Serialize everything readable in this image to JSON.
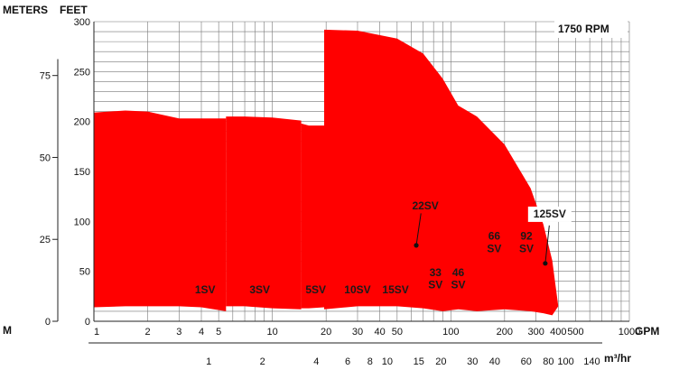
{
  "chart_data": {
    "type": "area",
    "title": "",
    "speed_label": "1750 RPM",
    "axis_units": {
      "left_outer": "METERS",
      "left_outer_stub": "M",
      "left_inner": "FEET",
      "bottom_primary": "GPM",
      "bottom_secondary": "m³/hr"
    },
    "x_scale": "log",
    "xlim": [
      1,
      1000
    ],
    "ylim": [
      0,
      300
    ],
    "grid": true,
    "feet_ticks": [
      {
        "value": 0,
        "label": "0"
      },
      {
        "value": 50,
        "label": "50"
      },
      {
        "value": 100,
        "label": "100"
      },
      {
        "value": 150,
        "label": "150"
      },
      {
        "value": 200,
        "label": "200"
      },
      {
        "value": 250,
        "label": "250"
      },
      {
        "value": 300,
        "label": "300"
      }
    ],
    "meter_ticks": [
      {
        "value": 0,
        "label": "0"
      },
      {
        "value": 25,
        "label": "25"
      },
      {
        "value": 50,
        "label": "50"
      },
      {
        "value": 75,
        "label": "75"
      }
    ],
    "gpm_ticks": [
      {
        "value": 1,
        "label": "1"
      },
      {
        "value": 2,
        "label": "2"
      },
      {
        "value": 3,
        "label": "3"
      },
      {
        "value": 4,
        "label": "4"
      },
      {
        "value": 5,
        "label": "5"
      },
      {
        "value": 10,
        "label": "10"
      },
      {
        "value": 20,
        "label": "20"
      },
      {
        "value": 30,
        "label": "30"
      },
      {
        "value": 40,
        "label": "40"
      },
      {
        "value": 50,
        "label": "50"
      },
      {
        "value": 100,
        "label": "100"
      },
      {
        "value": 200,
        "label": "200"
      },
      {
        "value": 300,
        "label": "300"
      },
      {
        "value": 400,
        "label": "400"
      },
      {
        "value": 500,
        "label": "500"
      },
      {
        "value": 1000,
        "label": "1000"
      }
    ],
    "m3hr_ticks": [
      {
        "value": 1,
        "label": "1"
      },
      {
        "value": 2,
        "label": "2"
      },
      {
        "value": 4,
        "label": "4"
      },
      {
        "value": 6,
        "label": "6"
      },
      {
        "value": 8,
        "label": "8"
      },
      {
        "value": 10,
        "label": "10"
      },
      {
        "value": 15,
        "label": "15"
      },
      {
        "value": 20,
        "label": "20"
      },
      {
        "value": 30,
        "label": "30"
      },
      {
        "value": 40,
        "label": "40"
      },
      {
        "value": 60,
        "label": "60"
      },
      {
        "value": 80,
        "label": "80"
      },
      {
        "value": 100,
        "label": "100"
      },
      {
        "value": 140,
        "label": "140"
      }
    ],
    "fill_color": "#ff0000",
    "series": [
      {
        "name": "1SV",
        "gpm": [
          1,
          1.5,
          2,
          3,
          4,
          5.5,
          5.5
        ],
        "upper_ft": [
          209,
          211,
          210,
          203,
          203,
          203,
          5
        ],
        "lower_ft": [
          14,
          15,
          15,
          15,
          14,
          10,
          5
        ]
      },
      {
        "name": "3SV",
        "gpm": [
          5.5,
          7,
          10,
          14.5,
          14.5
        ],
        "upper_ft": [
          205,
          205,
          204,
          201,
          11
        ],
        "lower_ft": [
          15,
          15,
          13,
          12,
          11
        ]
      },
      {
        "name": "5SV",
        "gpm": [
          10,
          14.5,
          17.5,
          19.5
        ],
        "upper_ft": [
          13,
          13,
          13,
          10
        ],
        "lower_ft": [
          13,
          13,
          13,
          10
        ]
      },
      {
        "name": "5SV / 10SV / 15SV",
        "gpm": [
          14.5,
          16,
          19.5,
          19.5,
          30,
          40,
          60,
          70,
          70
        ],
        "upper_ft": [
          198,
          196,
          196,
          15,
          15,
          14,
          13,
          12,
          7
        ],
        "lower_ft": [
          13,
          13,
          14,
          15,
          15,
          14,
          13,
          12,
          7
        ]
      },
      {
        "name": "22SV",
        "gpm": [
          19.5,
          30,
          50,
          70,
          90,
          110,
          140,
          200,
          280,
          330,
          370,
          400
        ],
        "upper_ft": [
          292,
          291,
          283,
          268,
          243,
          216,
          205,
          177,
          133,
          97,
          61,
          15
        ],
        "lower_ft": [
          12,
          15,
          15,
          13,
          10,
          12,
          10,
          12,
          10,
          8,
          6,
          15
        ]
      }
    ],
    "labels": [
      {
        "text": "1SV",
        "gpm": 4.2,
        "ft": 28
      },
      {
        "text": "3SV",
        "gpm": 8.5,
        "ft": 28
      },
      {
        "text": "5SV",
        "gpm": 17.5,
        "ft": 28
      },
      {
        "text": "10SV",
        "gpm": 30,
        "ft": 28
      },
      {
        "text": "15SV",
        "gpm": 49,
        "ft": 28
      },
      {
        "text": "22SV",
        "gpm": 72,
        "ft": 112
      },
      {
        "text": "33",
        "gpm": 82,
        "ft": 45
      },
      {
        "text": "SV",
        "gpm": 82,
        "ft": 33
      },
      {
        "text": "46",
        "gpm": 110,
        "ft": 45
      },
      {
        "text": "SV",
        "gpm": 110,
        "ft": 33
      },
      {
        "text": "66",
        "gpm": 175,
        "ft": 82
      },
      {
        "text": "SV",
        "gpm": 175,
        "ft": 69
      },
      {
        "text": "92",
        "gpm": 265,
        "ft": 82
      },
      {
        "text": "SV",
        "gpm": 265,
        "ft": 69
      },
      {
        "text": "125SV",
        "gpm": 358,
        "ft": 104
      }
    ],
    "leaders": [
      {
        "name": "22SV",
        "from_gpm": 68,
        "from_ft": 108,
        "to_gpm": 64,
        "to_ft": 76
      },
      {
        "name": "125SV",
        "from_gpm": 356,
        "from_ft": 96,
        "to_gpm": 338,
        "to_ft": 58
      }
    ]
  }
}
